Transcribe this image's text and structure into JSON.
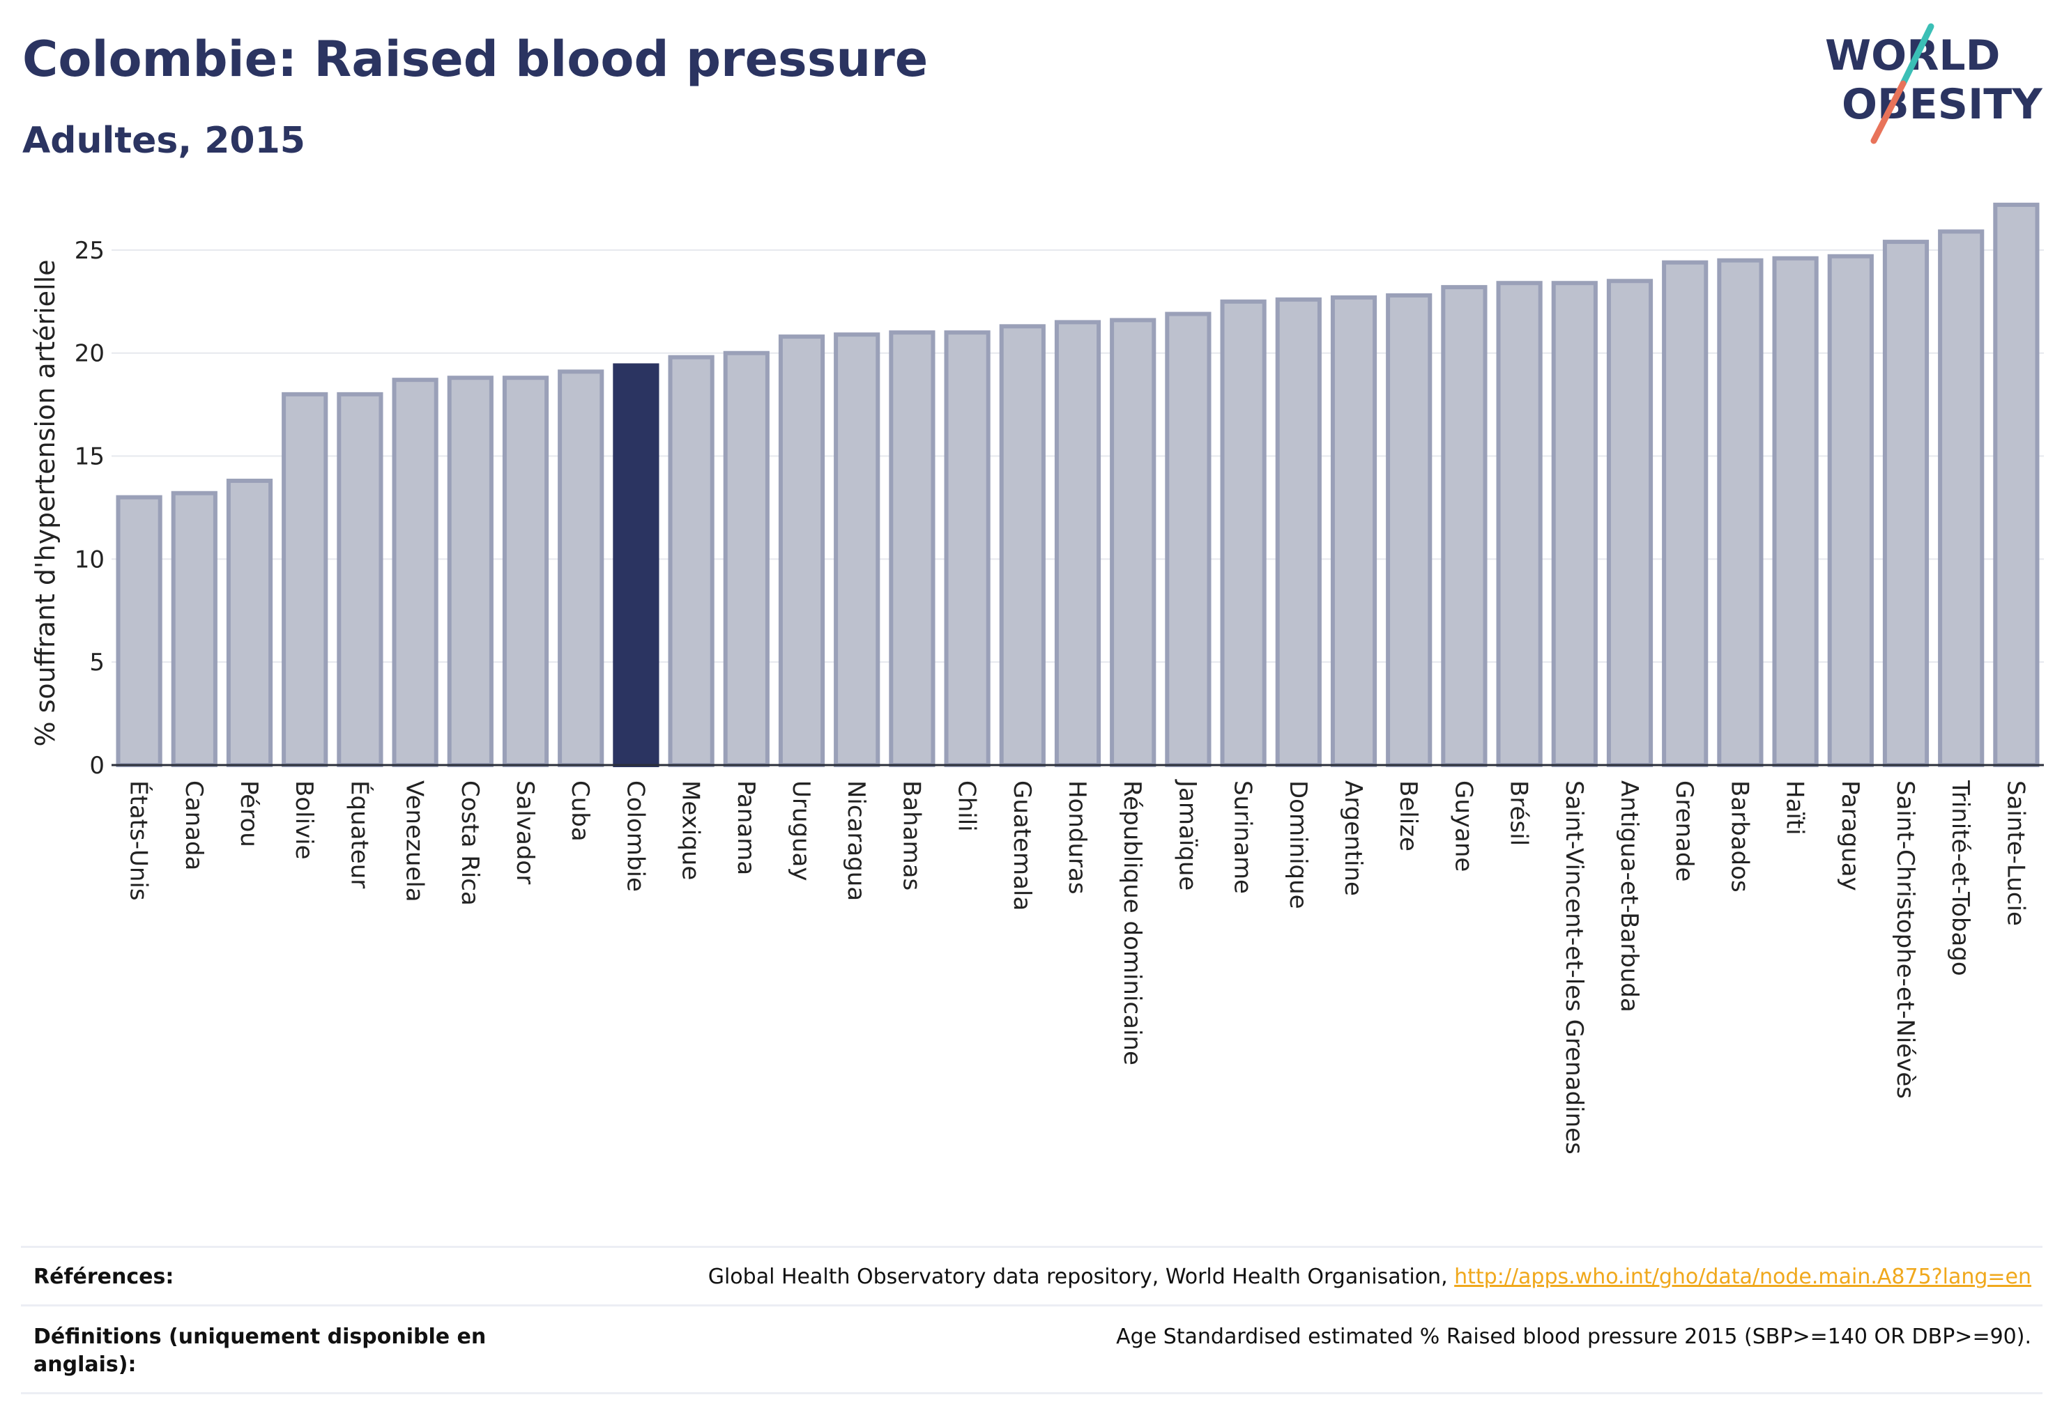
{
  "header": {
    "title": "Colombie: Raised blood pressure",
    "subtitle": "Adultes, 2015"
  },
  "logo": {
    "line1": "WORLD",
    "line2": "OBESITY"
  },
  "colors": {
    "bar_fill": "#bdc1ce",
    "bar_stroke": "#9aa0b8",
    "highlight": "#2b3461",
    "text": "#2b3461",
    "link": "#f0a81c",
    "logo_teal": "#3bbfb6",
    "logo_coral": "#e8735a"
  },
  "chart_data": {
    "type": "bar",
    "ylabel": "% souffrant d'hypertension artérielle",
    "ylim": [
      0,
      27.5
    ],
    "yticks": [
      0,
      5,
      10,
      15,
      20,
      25
    ],
    "grid": true,
    "highlight": "Colombie",
    "categories": [
      "États-Unis",
      "Canada",
      "Pérou",
      "Bolivie",
      "Équateur",
      "Venezuela",
      "Costa Rica",
      "Salvador",
      "Cuba",
      "Colombie",
      "Mexique",
      "Panama",
      "Uruguay",
      "Nicaragua",
      "Bahamas",
      "Chili",
      "Guatemala",
      "Honduras",
      "République dominicaine",
      "Jamaïque",
      "Suriname",
      "Dominique",
      "Argentine",
      "Belize",
      "Guyane",
      "Brésil",
      "Saint-Vincent-et-les Grenadines",
      "Antigua-et-Barbuda",
      "Grenade",
      "Barbados",
      "Haïti",
      "Paraguay",
      "Saint-Christophe-et-Niévès",
      "Trinité-et-Tobago",
      "Sainte-Lucie"
    ],
    "values": [
      13.0,
      13.2,
      13.8,
      18.0,
      18.0,
      18.7,
      18.8,
      18.8,
      19.1,
      19.4,
      19.8,
      20.0,
      20.8,
      20.9,
      21.0,
      21.0,
      21.3,
      21.5,
      21.6,
      21.9,
      22.5,
      22.6,
      22.7,
      22.8,
      23.2,
      23.4,
      23.4,
      23.5,
      24.4,
      24.5,
      24.6,
      24.7,
      25.4,
      25.9,
      27.2
    ]
  },
  "footer": {
    "references_label": "Références:",
    "references_text": "Global Health Observatory data repository, World Health Organisation, ",
    "references_link": "http://apps.who.int/gho/data/node.main.A875?lang=en",
    "definitions_label": "Définitions (uniquement disponible en anglais):",
    "definitions_text": "Age Standardised estimated % Raised blood pressure 2015 (SBP>=140 OR DBP>=90)."
  }
}
